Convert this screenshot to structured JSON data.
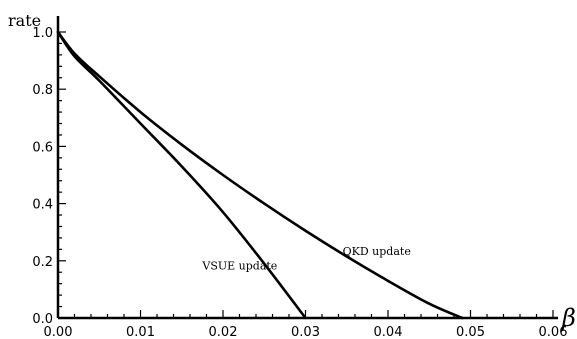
{
  "chart_data": {
    "type": "line",
    "title": "",
    "xlabel": "β",
    "ylabel": "rate",
    "xlim": [
      0,
      0.06
    ],
    "ylim": [
      0,
      1.0
    ],
    "grid": false,
    "x_ticks": [
      0.0,
      0.01,
      0.02,
      0.03,
      0.04,
      0.05,
      0.06
    ],
    "x_tick_labels": [
      "0.00",
      "0.01",
      "0.02",
      "0.03",
      "0.04",
      "0.05",
      "0.06"
    ],
    "y_ticks": [
      0.0,
      0.2,
      0.4,
      0.6,
      0.8,
      1.0
    ],
    "y_tick_labels": [
      "0.0",
      "0.2",
      "0.4",
      "0.6",
      "0.8",
      "1.0"
    ],
    "series": [
      {
        "name": "QKD update",
        "x": [
          0.0,
          0.002,
          0.005,
          0.01,
          0.015,
          0.02,
          0.025,
          0.03,
          0.035,
          0.04,
          0.045,
          0.049
        ],
        "y": [
          1.0,
          0.925,
          0.845,
          0.72,
          0.606,
          0.5,
          0.4,
          0.305,
          0.215,
          0.13,
          0.05,
          0.0
        ]
      },
      {
        "name": "VSUE update",
        "x": [
          0.0,
          0.002,
          0.005,
          0.01,
          0.015,
          0.02,
          0.025,
          0.03
        ],
        "y": [
          1.0,
          0.915,
          0.83,
          0.68,
          0.53,
          0.37,
          0.19,
          0.0
        ]
      }
    ],
    "annotations": [
      {
        "text": "QKD update",
        "x": 0.0345,
        "y": 0.22
      },
      {
        "text": "VSUE update",
        "x": 0.0175,
        "y": 0.17
      }
    ]
  }
}
